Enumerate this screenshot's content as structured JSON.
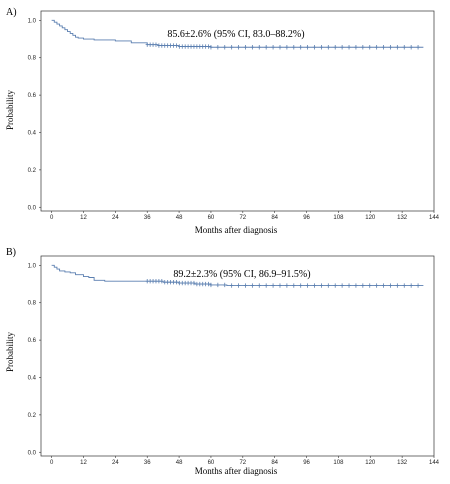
{
  "chart_data": [
    {
      "type": "line",
      "panel_label": "A)",
      "annotation": "85.6±2.6% (95% CI, 83.0–88.2%)",
      "xlabel": "Months after diagnosis",
      "ylabel": "Probability",
      "xlim": [
        -4,
        144
      ],
      "ylim": [
        -0.02,
        1.05
      ],
      "xticks": [
        0,
        12,
        24,
        36,
        48,
        60,
        72,
        84,
        96,
        108,
        120,
        132,
        144
      ],
      "yticks": [
        0.0,
        0.2,
        0.4,
        0.6,
        0.8,
        1.0
      ],
      "ytick_labels": [
        "0.0",
        "0.2",
        "0.4",
        "0.6",
        "0.8",
        "1.0"
      ],
      "series": [
        {
          "color": "#5b7fb0",
          "x": [
            0,
            1,
            2,
            3,
            4,
            5,
            6,
            7,
            8,
            9,
            10,
            12,
            16,
            24,
            30,
            36,
            40,
            48,
            60,
            72,
            84,
            96,
            108,
            120,
            132,
            140
          ],
          "y": [
            1.0,
            0.99,
            0.98,
            0.97,
            0.96,
            0.95,
            0.94,
            0.93,
            0.92,
            0.91,
            0.905,
            0.9,
            0.895,
            0.89,
            0.88,
            0.87,
            0.865,
            0.86,
            0.856,
            0.856,
            0.856,
            0.856,
            0.856,
            0.856,
            0.856,
            0.856
          ]
        }
      ],
      "censor_ranges": [
        [
          36,
          60,
          1.1
        ],
        [
          60,
          140,
          2.6
        ]
      ]
    },
    {
      "type": "line",
      "panel_label": "B)",
      "annotation": "89.2±2.3% (95% CI, 86.9–91.5%)",
      "xlabel": "Months after diagnosis",
      "ylabel": "Probability",
      "xlim": [
        -4,
        144
      ],
      "ylim": [
        -0.02,
        1.05
      ],
      "xticks": [
        0,
        12,
        24,
        36,
        48,
        60,
        72,
        84,
        96,
        108,
        120,
        132,
        144
      ],
      "yticks": [
        0.0,
        0.2,
        0.4,
        0.6,
        0.8,
        1.0
      ],
      "ytick_labels": [
        "0.0",
        "0.2",
        "0.4",
        "0.6",
        "0.8",
        "1.0"
      ],
      "series": [
        {
          "color": "#5b7fb0",
          "x": [
            0,
            1,
            2,
            3,
            5,
            7,
            9,
            12,
            14,
            16,
            20,
            36,
            42,
            48,
            54,
            60,
            66,
            72,
            84,
            96,
            108,
            120,
            132,
            140
          ],
          "y": [
            1.0,
            0.99,
            0.98,
            0.97,
            0.965,
            0.96,
            0.95,
            0.94,
            0.935,
            0.92,
            0.915,
            0.915,
            0.91,
            0.905,
            0.9,
            0.895,
            0.892,
            0.892,
            0.892,
            0.892,
            0.892,
            0.892,
            0.892,
            0.892
          ]
        }
      ],
      "censor_ranges": [
        [
          36,
          60,
          1.1
        ],
        [
          60,
          140,
          2.6
        ]
      ]
    }
  ]
}
